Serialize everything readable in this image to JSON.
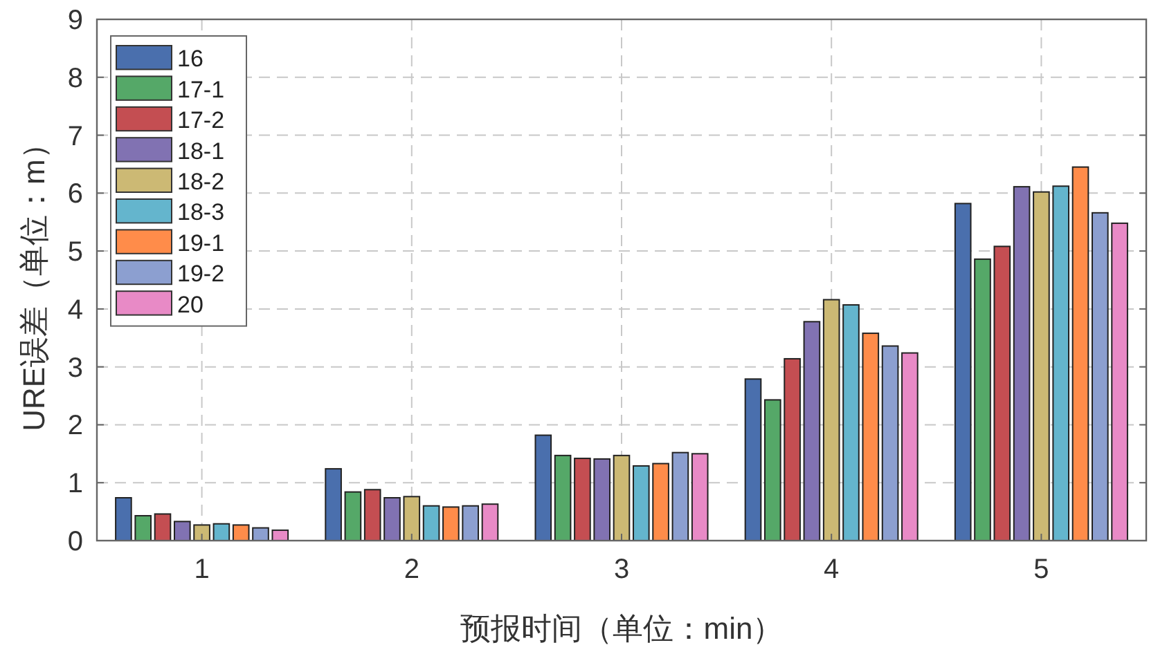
{
  "chart_data": {
    "type": "bar",
    "xlabel": "预报时间（单位：min）",
    "ylabel": "URE误差（单位：m）",
    "categories": [
      "1",
      "2",
      "3",
      "4",
      "5"
    ],
    "ylim": [
      0,
      9
    ],
    "yticks": [
      0,
      1,
      2,
      3,
      4,
      5,
      6,
      7,
      8,
      9
    ],
    "grid": true,
    "legend": "top left",
    "series": [
      {
        "name": "16",
        "color": "#4a6fad",
        "values": [
          0.74,
          1.24,
          1.82,
          2.79,
          5.82
        ]
      },
      {
        "name": "17-1",
        "color": "#55a868",
        "values": [
          0.43,
          0.84,
          1.47,
          2.43,
          4.86
        ]
      },
      {
        "name": "17-2",
        "color": "#c44e52",
        "values": [
          0.46,
          0.88,
          1.42,
          3.14,
          5.08
        ]
      },
      {
        "name": "18-1",
        "color": "#8172b2",
        "values": [
          0.33,
          0.74,
          1.41,
          3.78,
          6.11
        ]
      },
      {
        "name": "18-2",
        "color": "#ccb974",
        "values": [
          0.27,
          0.76,
          1.47,
          4.16,
          6.02
        ]
      },
      {
        "name": "18-3",
        "color": "#64b5cd",
        "values": [
          0.29,
          0.6,
          1.29,
          4.07,
          6.12
        ]
      },
      {
        "name": "19-1",
        "color": "#ff8c4a",
        "values": [
          0.27,
          0.58,
          1.33,
          3.58,
          6.45
        ]
      },
      {
        "name": "19-2",
        "color": "#8c9fd0",
        "values": [
          0.22,
          0.6,
          1.52,
          3.36,
          5.66
        ]
      },
      {
        "name": "20",
        "color": "#e88ac6",
        "values": [
          0.18,
          0.63,
          1.5,
          3.24,
          5.48
        ]
      }
    ]
  }
}
